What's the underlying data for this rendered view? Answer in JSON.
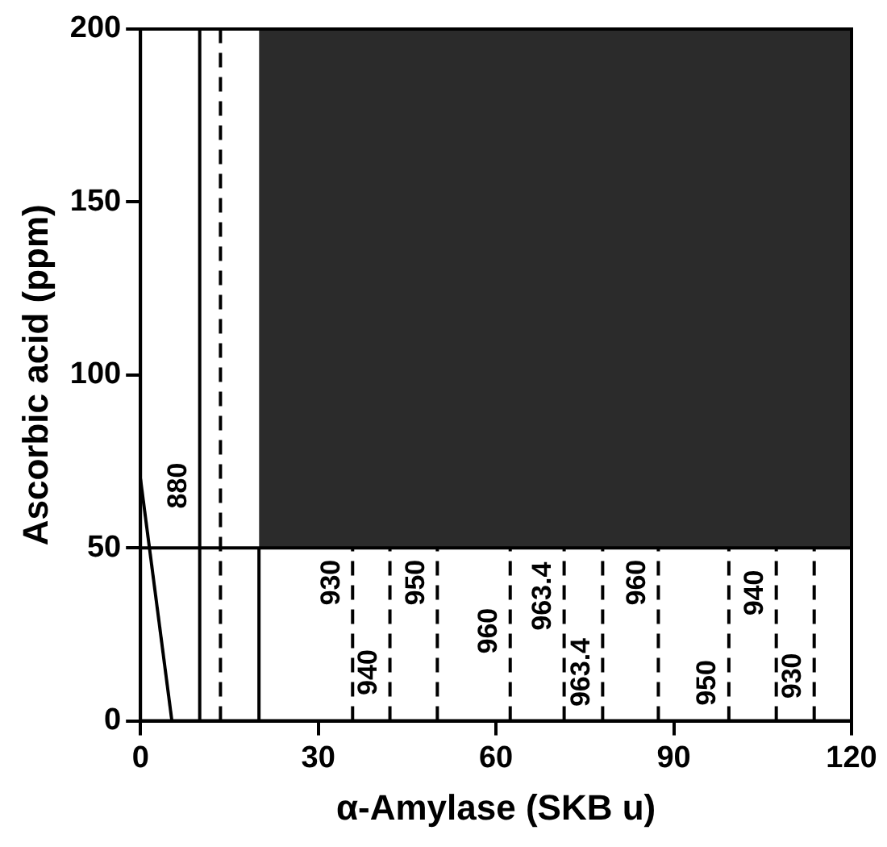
{
  "chart_data": {
    "type": "line",
    "xlabel": "α-Amylase (SKB u)",
    "ylabel": "Ascorbic acid (ppm)",
    "xlim": [
      0,
      120
    ],
    "xticks": [
      0,
      30,
      60,
      90,
      120
    ],
    "ylim": [
      0,
      200
    ],
    "yticks": [
      0,
      50,
      100,
      150,
      200
    ],
    "grid": false,
    "legend": false,
    "marker": "none",
    "series": [
      {
        "x": [
          0,
          120
        ],
        "values": [
          50,
          50
        ],
        "color": "#000000",
        "line_style": "solid"
      },
      {
        "type": "area",
        "x": [
          20,
          120
        ],
        "values": [
          200,
          200
        ],
        "color": "#2b2b2b"
      },
      {
        "x": [
          0,
          5.3
        ],
        "values": [
          70,
          0
        ],
        "color": "#000000",
        "line_style": "solid"
      },
      {
        "x": [
          10,
          10
        ],
        "values": [
          0,
          200
        ],
        "color": "#000000",
        "line_style": "solid"
      },
      {
        "x": [
          13.5,
          13.5
        ],
        "values": [
          0,
          200
        ],
        "color": "#000000",
        "line_style": "dashed"
      },
      {
        "x": [
          20,
          20
        ],
        "values": [
          0,
          50
        ],
        "color": "#000000",
        "line_style": "solid"
      },
      {
        "x": [
          35.8,
          35.8
        ],
        "values": [
          0,
          50
        ],
        "color": "#000000",
        "line_style": "dashed"
      },
      {
        "x": [
          42.1,
          42.1
        ],
        "values": [
          0,
          50
        ],
        "color": "#000000",
        "line_style": "dashed"
      },
      {
        "x": [
          50.1,
          50.1
        ],
        "values": [
          0,
          50
        ],
        "color": "#000000",
        "line_style": "dashed"
      },
      {
        "x": [
          62.4,
          62.4
        ],
        "values": [
          0,
          50
        ],
        "color": "#000000",
        "line_style": "dashed"
      },
      {
        "x": [
          71.5,
          71.5
        ],
        "values": [
          0,
          50
        ],
        "color": "#000000",
        "line_style": "dashed"
      },
      {
        "x": [
          78,
          78
        ],
        "values": [
          0,
          50
        ],
        "color": "#000000",
        "line_style": "dashed"
      },
      {
        "x": [
          87.4,
          87.4
        ],
        "values": [
          0,
          50
        ],
        "color": "#000000",
        "line_style": "dashed"
      },
      {
        "x": [
          99.3,
          99.3
        ],
        "values": [
          0,
          50
        ],
        "color": "#000000",
        "line_style": "dashed"
      },
      {
        "x": [
          107.3,
          107.3
        ],
        "values": [
          0,
          50
        ],
        "color": "#000000",
        "line_style": "dashed"
      },
      {
        "x": [
          113.7,
          113.7
        ],
        "values": [
          0,
          50
        ],
        "color": "#000000",
        "line_style": "dashed"
      }
    ],
    "annotations": [
      {
        "text": "880",
        "x": 10,
        "y": 68
      },
      {
        "text": "930",
        "x": 35.8,
        "y": 40
      },
      {
        "text": "940",
        "x": 42.1,
        "y": 14
      },
      {
        "text": "950",
        "x": 50.1,
        "y": 40
      },
      {
        "text": "960",
        "x": 62.4,
        "y": 26
      },
      {
        "text": "963.4",
        "x": 71.5,
        "y": 36
      },
      {
        "text": "963.4",
        "x": 78,
        "y": 14
      },
      {
        "text": "960",
        "x": 87.4,
        "y": 40
      },
      {
        "text": "950",
        "x": 99.3,
        "y": 11
      },
      {
        "text": "940",
        "x": 107.3,
        "y": 37
      },
      {
        "text": "930",
        "x": 113.7,
        "y": 13
      }
    ]
  }
}
